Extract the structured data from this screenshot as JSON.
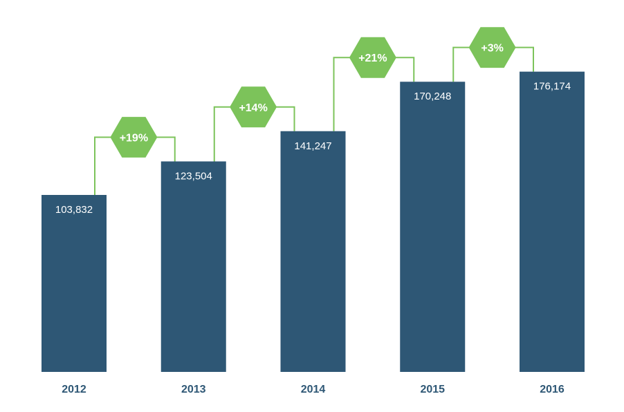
{
  "colors": {
    "bar": "#2e5775",
    "accent": "#7cc35a",
    "category_text": "#2e5775",
    "label_text": "#ffffff"
  },
  "chart_data": {
    "type": "bar",
    "title": "",
    "xlabel": "",
    "ylabel": "",
    "categories": [
      "2012",
      "2013",
      "2014",
      "2015",
      "2016"
    ],
    "values": [
      103832,
      123504,
      141247,
      170248,
      176174
    ],
    "value_labels": [
      "103,832",
      "123,504",
      "141,247",
      "170,248",
      "176,174"
    ],
    "growth_labels": [
      "+19%",
      "+14%",
      "+21%",
      "+3%"
    ],
    "grid": false,
    "legend": "none",
    "ylim": [
      0,
      180000
    ]
  }
}
